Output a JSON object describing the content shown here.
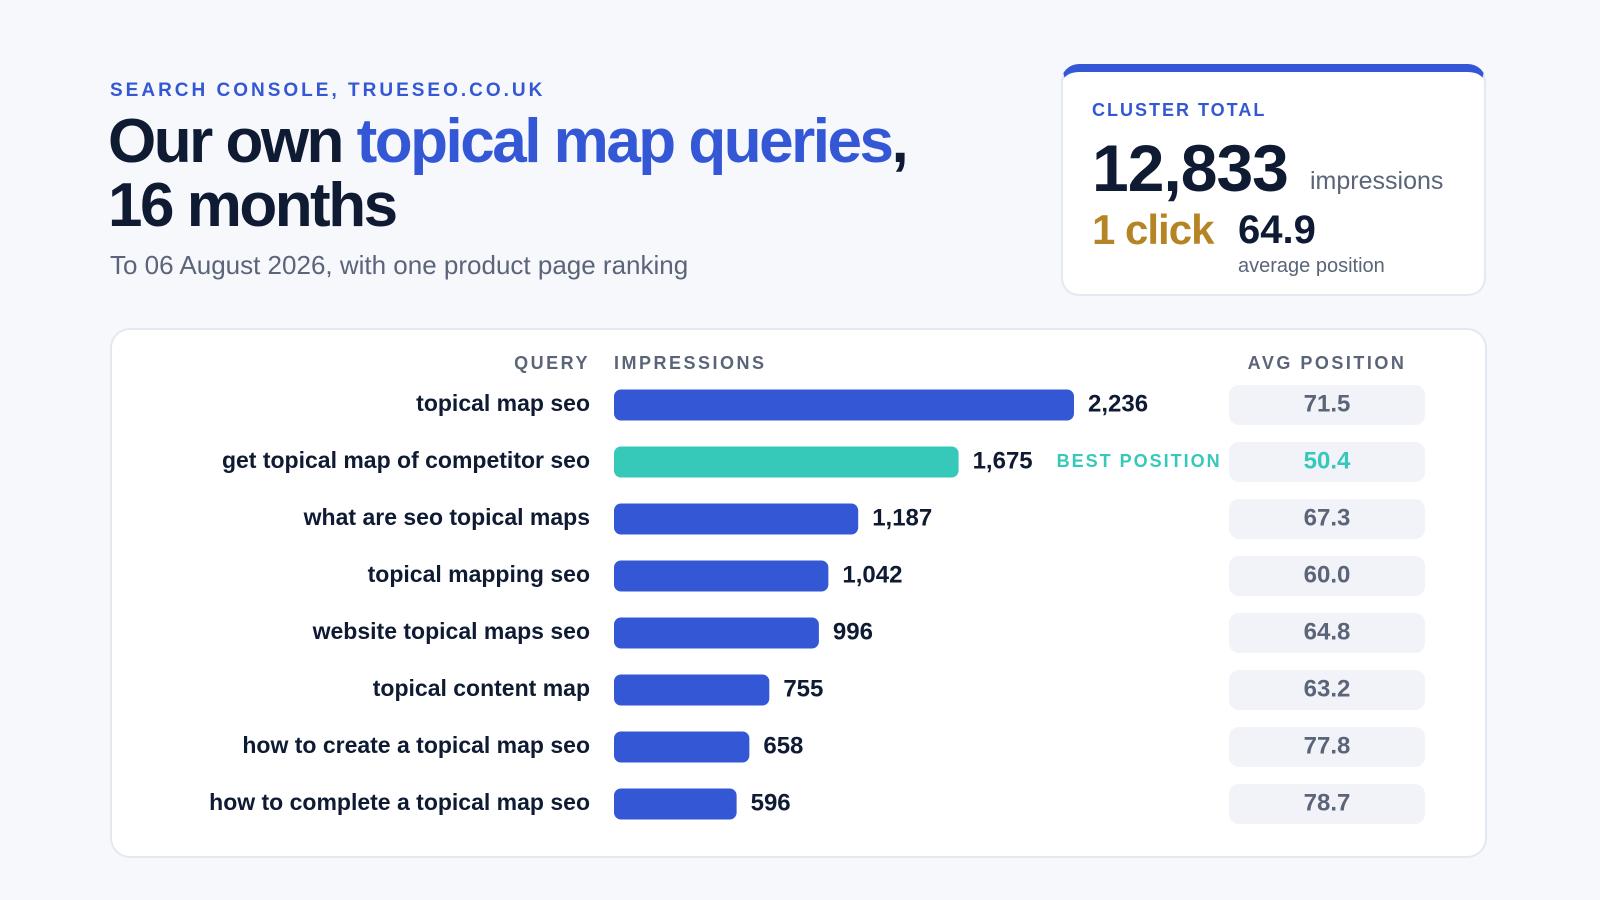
{
  "header": {
    "eyebrow": "SEARCH CONSOLE, TRUESEO.CO.UK",
    "title_part1": "Our own ",
    "title_accent": "topical map queries",
    "title_part2": ",",
    "title_line2": "16 months",
    "subtitle": "To 06 August 2026, with one product page ranking"
  },
  "summary": {
    "label": "CLUSTER TOTAL",
    "impressions": "12,833",
    "impressions_unit": "impressions",
    "clicks": "1 click",
    "avg_position": "64.9",
    "avg_position_label": "average position"
  },
  "colors": {
    "accent": "#3457d5",
    "highlight": "#36c8b8",
    "clicks": "#b58525",
    "text": "#0f1a33",
    "muted": "#5b6478",
    "pill": "#f1f3f8"
  },
  "chart_data": {
    "type": "bar",
    "orientation": "horizontal",
    "column_headers": {
      "query": "QUERY",
      "impressions": "IMPRESSIONS",
      "avg_position": "AVG POSITION"
    },
    "categories": [
      "topical map seo",
      "get topical map of competitor seo",
      "what are seo topical maps",
      "topical mapping seo",
      "website topical maps seo",
      "topical content map",
      "how to create a topical map seo",
      "how to complete a topical map seo"
    ],
    "values": [
      2236,
      1675,
      1187,
      1042,
      996,
      755,
      658,
      596
    ],
    "value_labels": [
      "2,236",
      "1,675",
      "1,187",
      "1,042",
      "996",
      "755",
      "658",
      "596"
    ],
    "avg_position": [
      "71.5",
      "50.4",
      "67.3",
      "60.0",
      "64.8",
      "63.2",
      "77.8",
      "78.7"
    ],
    "highlight_index": 1,
    "highlight_label": "BEST POSITION",
    "xlim": [
      0,
      2236
    ]
  }
}
